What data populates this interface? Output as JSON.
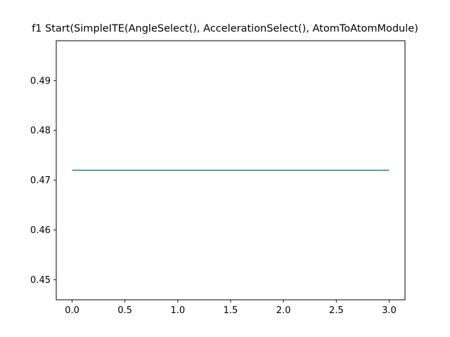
{
  "chart_data": {
    "type": "line",
    "title": "f1 Start(SimpleITE(AngleSelect(), AccelerationSelect(), AtomToAtomModule)",
    "xlabel": "",
    "ylabel": "",
    "xlim": [
      -0.15,
      3.15
    ],
    "ylim": [
      0.446,
      0.498
    ],
    "xticks": [
      "0.0",
      "0.5",
      "1.0",
      "1.5",
      "2.0",
      "2.5",
      "3.0"
    ],
    "yticks": [
      "0.45",
      "0.46",
      "0.47",
      "0.48",
      "0.49"
    ],
    "grid": false,
    "series": [
      {
        "color": "#1f77b4",
        "x": [
          0,
          1,
          2,
          3
        ],
        "y": [
          0.472,
          0.472,
          0.472,
          0.472
        ]
      }
    ]
  }
}
